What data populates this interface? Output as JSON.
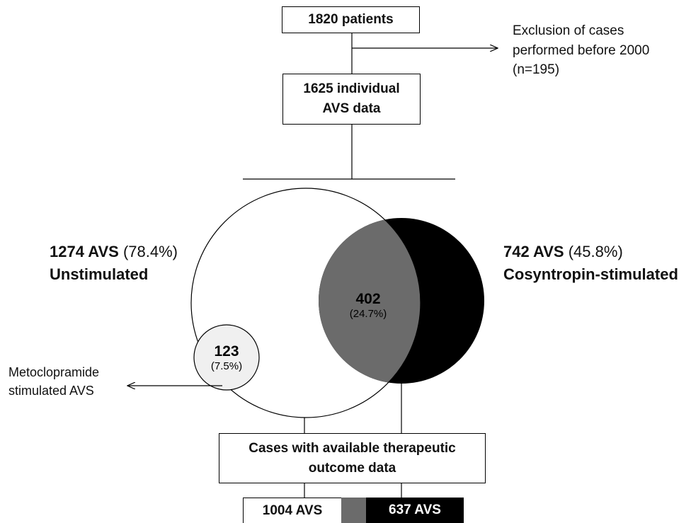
{
  "flow": {
    "top_box": "1820 patients",
    "exclusion_line1": "Exclusion of cases",
    "exclusion_line2": "performed before 2000",
    "exclusion_line3": "(n=195)",
    "second_box_line1": "1625 individual",
    "second_box_line2": "AVS data",
    "outcome_box_line1": "Cases with available therapeutic",
    "outcome_box_line2": "outcome data"
  },
  "unstimulated": {
    "count": "1274 AVS",
    "percent": "(78.4%)",
    "label": "Unstimulated"
  },
  "cosyntropin": {
    "count": "742 AVS",
    "percent": "(45.8%)",
    "label": "Cosyntropin-stimulated"
  },
  "overlap": {
    "count": "402",
    "percent": "(24.7%)"
  },
  "metoclopramide": {
    "count": "123",
    "percent": "(7.5%)",
    "label_line1": "Metoclopramide",
    "label_line2": "stimulated AVS"
  },
  "bottom": {
    "left": "1004 AVS",
    "right": "637 AVS"
  },
  "colors": {
    "overlap": "#6b6b6b",
    "cosyntropin": "#000000",
    "metoclopramide": "#f0f0f0",
    "line": "#000000"
  }
}
